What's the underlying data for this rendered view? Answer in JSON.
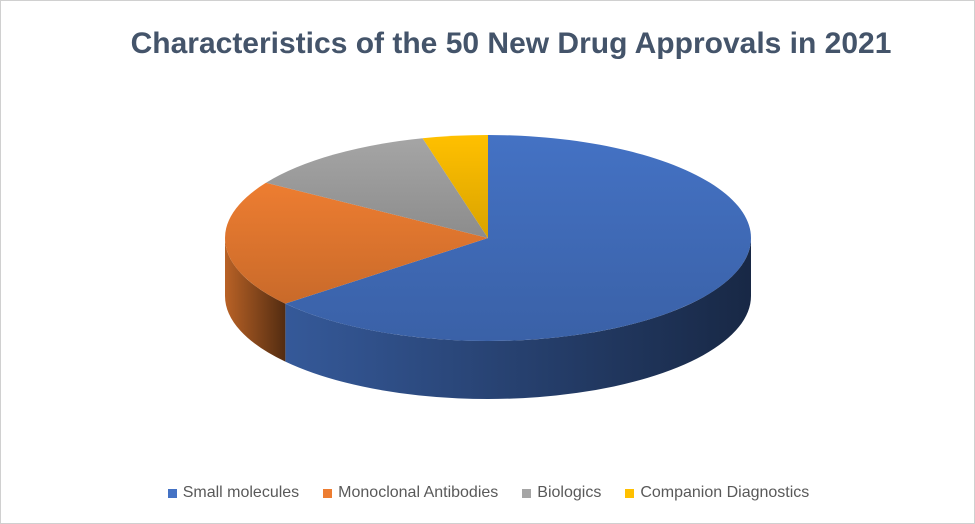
{
  "chart_data": {
    "type": "pie",
    "title": "Characteristics of the 50 New Drug Approvals in 2021",
    "categories": [
      "Small molecules",
      "Monoclonal Antibodies",
      "Biologics",
      "Companion Diagnostics"
    ],
    "values": [
      32,
      10,
      6,
      2
    ],
    "colors": [
      "#4472c4",
      "#ed7d31",
      "#a5a5a5",
      "#ffc000"
    ],
    "style": "3d",
    "legend_position": "bottom"
  }
}
